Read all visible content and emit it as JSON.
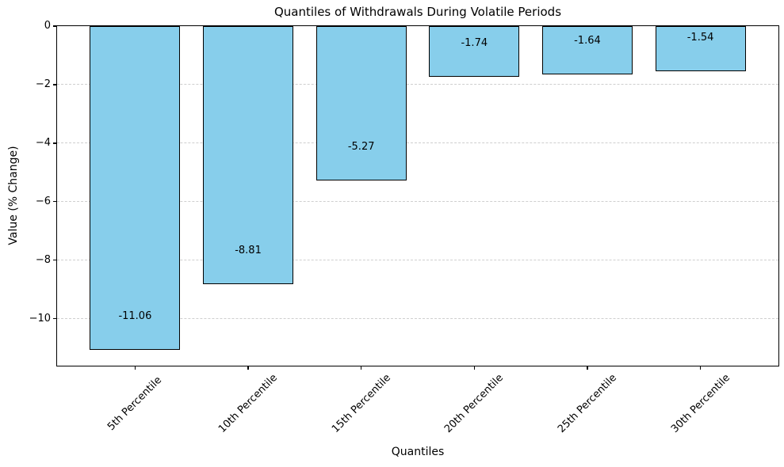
{
  "chart_data": {
    "type": "bar",
    "title": "Quantiles of Withdrawals During Volatile Periods",
    "xlabel": "Quantiles",
    "ylabel": "Value (% Change)",
    "categories": [
      "5th Percentile",
      "10th Percentile",
      "15th Percentile",
      "20th Percentile",
      "25th Percentile",
      "30th Percentile"
    ],
    "values": [
      -11.06,
      -8.81,
      -5.27,
      -1.74,
      -1.64,
      -1.54
    ],
    "value_labels": [
      "-11.06",
      "-8.81",
      "-5.27",
      "-1.74",
      "-1.64",
      "-1.54"
    ],
    "yticks": [
      0,
      -2,
      -4,
      -6,
      -8,
      -10
    ],
    "ytick_labels": [
      "0",
      "−2",
      "−4",
      "−6",
      "−8",
      "−10"
    ],
    "ylim": [
      -11.61,
      0
    ],
    "xlim": [
      -0.69,
      5.69
    ],
    "bar_width_units": 0.8,
    "grid": {
      "axis": "y",
      "style": "dashed",
      "visible": true
    },
    "legend": {
      "visible": false
    },
    "colors": {
      "bar_fill": "#87CEEB",
      "bar_edge": "#000000",
      "grid_line": "#cfcfcf",
      "text": "#000000",
      "background": "#ffffff"
    }
  }
}
